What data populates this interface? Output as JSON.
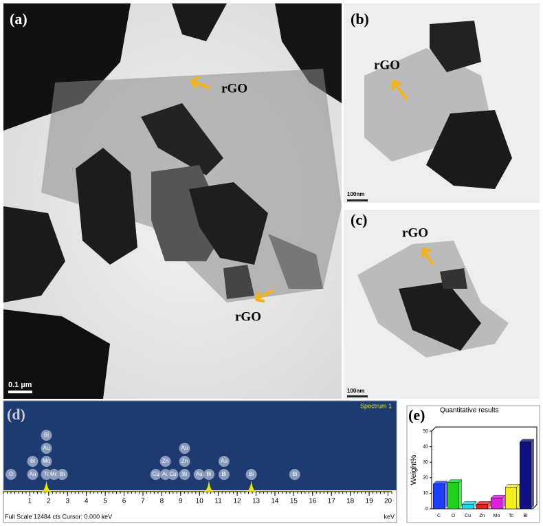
{
  "panels": {
    "a": {
      "label": "(a)",
      "annotations": [
        "rGO",
        "rGO"
      ],
      "scale_bar": "0.1 µm"
    },
    "b": {
      "label": "(b)",
      "annotations": [
        "rGO"
      ],
      "scale_bar": "100nm"
    },
    "c": {
      "label": "(c)",
      "annotations": [
        "rGO"
      ],
      "scale_bar": "100nm"
    },
    "d": {
      "label": "(d)"
    },
    "e": {
      "label": "(e)"
    }
  },
  "chart_data": [
    {
      "type": "spectrum",
      "title": "Spectrum 1",
      "x_label": "keV",
      "footer": "Full Scale 12484 cts  Cursor: 0.000 keV",
      "xlim": [
        -0.4,
        20.2
      ],
      "xticks": [
        1,
        2,
        3,
        4,
        5,
        6,
        7,
        8,
        9,
        10,
        11,
        12,
        13,
        14,
        15,
        16,
        17,
        18,
        19,
        20
      ],
      "peaks": [
        1.88,
        10.5,
        12.75
      ],
      "peak_labels": [
        {
          "x": 0,
          "labels": [
            "O"
          ]
        },
        {
          "x": 1.15,
          "labels": [
            "Bi",
            "Au"
          ]
        },
        {
          "x": 1.88,
          "labels": [
            "Bi",
            "Au",
            "Mo",
            "Tc"
          ]
        },
        {
          "x": 2.28,
          "labels": [
            "Mo"
          ]
        },
        {
          "x": 2.72,
          "labels": [
            "Bi"
          ]
        },
        {
          "x": 7.68,
          "labels": [
            "Cu"
          ]
        },
        {
          "x": 8.19,
          "labels": [
            "Zn",
            "Au"
          ]
        },
        {
          "x": 8.59,
          "labels": [
            "Cu"
          ]
        },
        {
          "x": 9.21,
          "labels": [
            "Au",
            "Zn",
            "Bi"
          ]
        },
        {
          "x": 9.98,
          "labels": [
            "Au"
          ]
        },
        {
          "x": 10.5,
          "labels": [
            "Bi"
          ]
        },
        {
          "x": 11.3,
          "labels": [
            "Au",
            "Bi"
          ]
        },
        {
          "x": 12.75,
          "labels": [
            "Bi"
          ]
        },
        {
          "x": 15.05,
          "labels": [
            "Bi"
          ]
        }
      ]
    },
    {
      "type": "bar",
      "title": "Quantitative results",
      "y_label": "Weight%",
      "categories": [
        "C",
        "O",
        "Cu",
        "Zn",
        "Mo",
        "Tc",
        "Bi"
      ],
      "values": [
        16,
        17,
        3,
        3,
        7,
        14,
        43
      ],
      "colors": [
        "#1c3cff",
        "#22d022",
        "#22d8e8",
        "#e82020",
        "#e020e0",
        "#f0f020",
        "#101080"
      ],
      "ylim": [
        0,
        50
      ],
      "yticks": [
        0,
        10,
        20,
        30,
        40,
        50
      ]
    }
  ]
}
